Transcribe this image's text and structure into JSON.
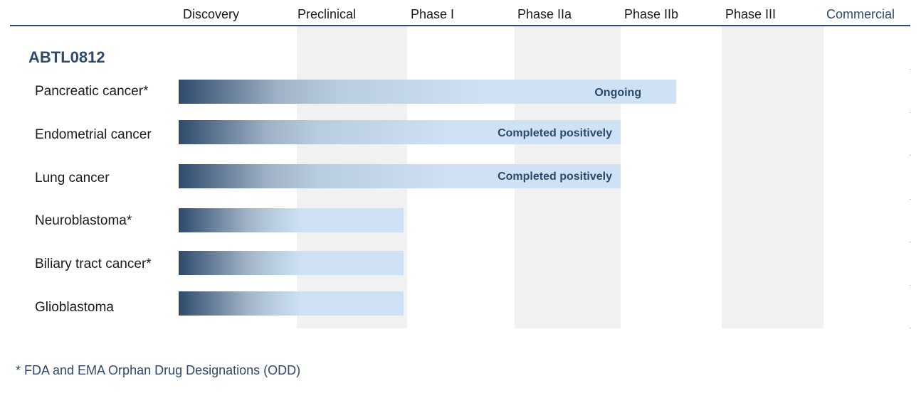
{
  "chart_data": {
    "type": "bar",
    "title": "",
    "product": "ABTL0812",
    "phases": [
      "Discovery",
      "Preclinical",
      "Phase I",
      "Phase IIa",
      "Phase IIb",
      "Phase III",
      "Commercial"
    ],
    "rows": [
      {
        "indication": "Pancreatic cancer*",
        "progress_end": 4.55,
        "status": "Ongoing"
      },
      {
        "indication": "Endometrial cancer",
        "progress_end": 4.0,
        "status": "Completed positively"
      },
      {
        "indication": "Lung cancer",
        "progress_end": 4.0,
        "status": "Completed positively"
      },
      {
        "indication": "Neuroblastoma*",
        "progress_end": 1.97,
        "status": ""
      },
      {
        "indication": "Biliary tract cancer*",
        "progress_end": 1.97,
        "status": ""
      },
      {
        "indication": "Glioblastoma",
        "progress_end": 1.97,
        "status": ""
      }
    ],
    "footnote": "* FDA and EMA Orphan Drug Designations (ODD)",
    "colors": {
      "bar_dark": "#2e4a6b",
      "bar_light": "#cfe2f5",
      "band": "#f1f1f1",
      "text_accent": "#2e4a6b"
    }
  }
}
